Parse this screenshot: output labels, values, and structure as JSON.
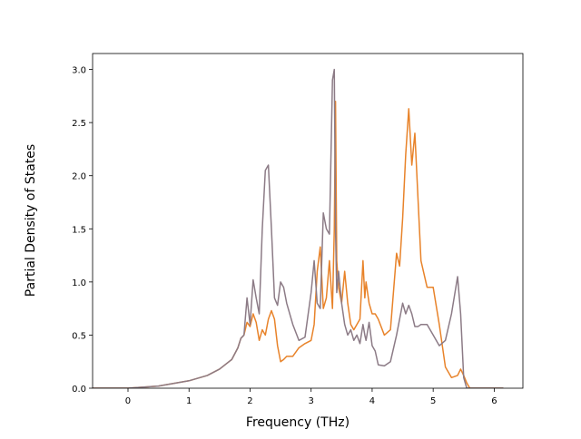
{
  "chart_data": {
    "type": "line",
    "x_label": "Frequency (THz)",
    "y_label": "Partial Density of States",
    "x": [
      -0.58,
      0,
      0.5,
      1.0,
      1.3,
      1.5,
      1.7,
      1.8,
      1.85,
      1.9,
      1.95,
      2.0,
      2.05,
      2.1,
      2.15,
      2.2,
      2.25,
      2.3,
      2.35,
      2.4,
      2.45,
      2.5,
      2.55,
      2.6,
      2.7,
      2.8,
      2.9,
      3.0,
      3.05,
      3.1,
      3.15,
      3.2,
      3.25,
      3.3,
      3.35,
      3.38,
      3.4,
      3.42,
      3.45,
      3.5,
      3.55,
      3.6,
      3.65,
      3.7,
      3.75,
      3.8,
      3.85,
      3.88,
      3.9,
      3.95,
      4.0,
      4.05,
      4.1,
      4.2,
      4.3,
      4.4,
      4.45,
      4.5,
      4.55,
      4.6,
      4.65,
      4.7,
      4.75,
      4.8,
      4.9,
      5.0,
      5.1,
      5.2,
      5.3,
      5.4,
      5.45,
      5.5,
      5.55,
      5.6,
      5.7,
      6.15
    ],
    "series": [
      {
        "color": "#e8832a",
        "values": [
          0,
          0,
          0.02,
          0.07,
          0.12,
          0.18,
          0.27,
          0.38,
          0.47,
          0.5,
          0.62,
          0.58,
          0.7,
          0.62,
          0.45,
          0.55,
          0.5,
          0.65,
          0.73,
          0.65,
          0.4,
          0.25,
          0.27,
          0.3,
          0.3,
          0.38,
          0.42,
          0.45,
          0.6,
          1.1,
          1.33,
          0.75,
          0.85,
          1.2,
          0.75,
          1.5,
          2.7,
          1.2,
          0.95,
          0.8,
          1.1,
          0.8,
          0.6,
          0.55,
          0.6,
          0.65,
          1.2,
          0.85,
          1.0,
          0.8,
          0.7,
          0.7,
          0.65,
          0.5,
          0.55,
          1.27,
          1.15,
          1.6,
          2.2,
          2.63,
          2.1,
          2.4,
          1.8,
          1.2,
          0.95,
          0.95,
          0.6,
          0.2,
          0.1,
          0.12,
          0.18,
          0.12,
          0.05,
          0,
          0,
          0
        ]
      },
      {
        "color": "#8c7b86",
        "values": [
          0,
          0,
          0.02,
          0.07,
          0.12,
          0.18,
          0.27,
          0.38,
          0.47,
          0.5,
          0.85,
          0.6,
          1.02,
          0.85,
          0.7,
          1.5,
          2.05,
          2.1,
          1.5,
          0.85,
          0.78,
          1.0,
          0.95,
          0.8,
          0.6,
          0.45,
          0.48,
          0.9,
          1.2,
          0.8,
          0.75,
          1.65,
          1.5,
          1.45,
          2.9,
          3.0,
          1.5,
          0.9,
          1.1,
          0.8,
          0.6,
          0.5,
          0.55,
          0.45,
          0.5,
          0.42,
          0.6,
          0.5,
          0.45,
          0.62,
          0.4,
          0.35,
          0.22,
          0.21,
          0.25,
          0.5,
          0.65,
          0.8,
          0.7,
          0.78,
          0.7,
          0.58,
          0.58,
          0.6,
          0.6,
          0.5,
          0.4,
          0.45,
          0.7,
          1.05,
          0.7,
          0.1,
          0,
          0,
          0,
          0
        ]
      }
    ],
    "xlim": [
      -0.58,
      6.47
    ],
    "ylim": [
      0,
      3.15
    ],
    "xticks": [
      0,
      1,
      2,
      3,
      4,
      5,
      6
    ],
    "yticks": [
      {
        "value": 0,
        "label": "0.0"
      },
      {
        "value": 0.5,
        "label": "0.5"
      },
      {
        "value": 1,
        "label": "1.0"
      },
      {
        "value": 1.5,
        "label": "1.5"
      },
      {
        "value": 2,
        "label": "2.0"
      },
      {
        "value": 2.5,
        "label": "2.5"
      },
      {
        "value": 3,
        "label": "3.0"
      }
    ]
  }
}
